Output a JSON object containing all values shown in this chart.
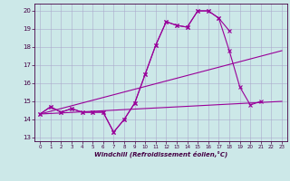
{
  "x": [
    0,
    1,
    2,
    3,
    4,
    5,
    6,
    7,
    8,
    9,
    10,
    11,
    12,
    13,
    14,
    15,
    16,
    17,
    18,
    19,
    20,
    21,
    22,
    23
  ],
  "line1": [
    14.3,
    14.7,
    14.4,
    14.6,
    14.4,
    14.4,
    14.4,
    13.3,
    14.0,
    14.9,
    16.5,
    18.1,
    19.4,
    19.2,
    19.1,
    20.0,
    20.0,
    19.6,
    18.9,
    null,
    null,
    null,
    null,
    null
  ],
  "line2": [
    14.3,
    14.7,
    14.4,
    14.6,
    14.4,
    14.4,
    14.4,
    13.3,
    14.0,
    14.9,
    16.5,
    18.1,
    19.4,
    19.2,
    19.1,
    20.0,
    20.0,
    19.6,
    17.8,
    15.8,
    14.8,
    15.0,
    null,
    null
  ],
  "line3_x": [
    0,
    23
  ],
  "line3_y": [
    14.3,
    15.0
  ],
  "line4_x": [
    0,
    23
  ],
  "line4_y": [
    14.3,
    17.8
  ],
  "bg_color": "#cce8e8",
  "line_color": "#990099",
  "grid_color": "#aaaacc",
  "ylim": [
    12.8,
    20.4
  ],
  "xlim": [
    -0.5,
    23.5
  ],
  "yticks": [
    13,
    14,
    15,
    16,
    17,
    18,
    19,
    20
  ],
  "xticks": [
    0,
    1,
    2,
    3,
    4,
    5,
    6,
    7,
    8,
    9,
    10,
    11,
    12,
    13,
    14,
    15,
    16,
    17,
    18,
    19,
    20,
    21,
    22,
    23
  ],
  "xlabel": "Windchill (Refroidissement éolien,°C)",
  "figsize": [
    3.2,
    2.0
  ],
  "dpi": 100
}
